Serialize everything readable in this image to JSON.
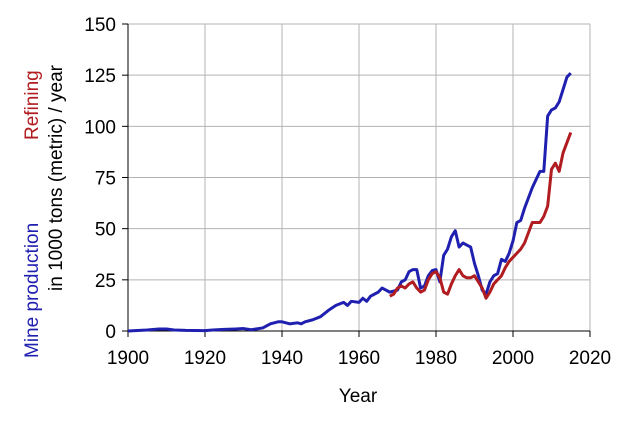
{
  "chart_data": {
    "type": "line",
    "xlabel": "Year",
    "ylabel": "in 1000 tons (metric) / year",
    "xlim": [
      1900,
      2020
    ],
    "xticks": [
      1900,
      1920,
      1940,
      1960,
      1980,
      2000,
      2020
    ],
    "ylim": [
      0,
      150
    ],
    "yticks": [
      0,
      25,
      50,
      75,
      100,
      125,
      150
    ],
    "grid": true,
    "series": [
      {
        "name": "Mine production",
        "color": "#2020b0",
        "x": [
          1900,
          1905,
          1908,
          1910,
          1912,
          1915,
          1920,
          1922,
          1925,
          1928,
          1930,
          1932,
          1935,
          1937,
          1939,
          1940,
          1942,
          1944,
          1945,
          1946,
          1948,
          1950,
          1952,
          1954,
          1956,
          1957,
          1958,
          1960,
          1961,
          1962,
          1963,
          1965,
          1966,
          1968,
          1970,
          1971,
          1972,
          1973,
          1974,
          1975,
          1976,
          1977,
          1978,
          1979,
          1980,
          1981,
          1982,
          1983,
          1984,
          1985,
          1986,
          1987,
          1988,
          1989,
          1990,
          1991,
          1992,
          1993,
          1994,
          1995,
          1996,
          1997,
          1998,
          1999,
          2000,
          2001,
          2002,
          2003,
          2004,
          2005,
          2006,
          2007,
          2008,
          2009,
          2010,
          2011,
          2012,
          2013,
          2014,
          2015
        ],
        "values": [
          0,
          0.5,
          1,
          1,
          0.5,
          0.3,
          0.2,
          0.5,
          0.8,
          1,
          1.2,
          0.6,
          1.5,
          3.5,
          4.5,
          4.5,
          3.5,
          4,
          3.5,
          4.5,
          5.5,
          7,
          10,
          12.5,
          14,
          12.5,
          14.5,
          14,
          16,
          14.5,
          17,
          19,
          21,
          19,
          20,
          24,
          25,
          29,
          30,
          30,
          21,
          22,
          27,
          29.5,
          30,
          24,
          37,
          40,
          46,
          49,
          41,
          43,
          42,
          41,
          33,
          27,
          20,
          18,
          24,
          27,
          28,
          35,
          34,
          38,
          44,
          53,
          54,
          60,
          65,
          70,
          74,
          78,
          78,
          105,
          108,
          109,
          112,
          118,
          124,
          126
        ]
      },
      {
        "name": "Refining",
        "color": "#b01c20",
        "x": [
          1968,
          1969,
          1970,
          1971,
          1972,
          1973,
          1974,
          1975,
          1976,
          1977,
          1978,
          1979,
          1980,
          1981,
          1982,
          1983,
          1984,
          1985,
          1986,
          1987,
          1988,
          1989,
          1990,
          1991,
          1992,
          1993,
          1994,
          1995,
          1996,
          1997,
          1998,
          1999,
          2000,
          2001,
          2002,
          2003,
          2004,
          2005,
          2006,
          2007,
          2008,
          2009,
          2010,
          2011,
          2012,
          2013,
          2014,
          2015
        ],
        "values": [
          17,
          18,
          21,
          22,
          21,
          23,
          24,
          21,
          19,
          20,
          25,
          28,
          29,
          26,
          19,
          18,
          23,
          27,
          30,
          27,
          26,
          26,
          27,
          24,
          21,
          16,
          19,
          23,
          25,
          27,
          31,
          34,
          36,
          38,
          40,
          43,
          48,
          53,
          53,
          53,
          56,
          61,
          79,
          82,
          78,
          87,
          92,
          97
        ]
      }
    ]
  }
}
